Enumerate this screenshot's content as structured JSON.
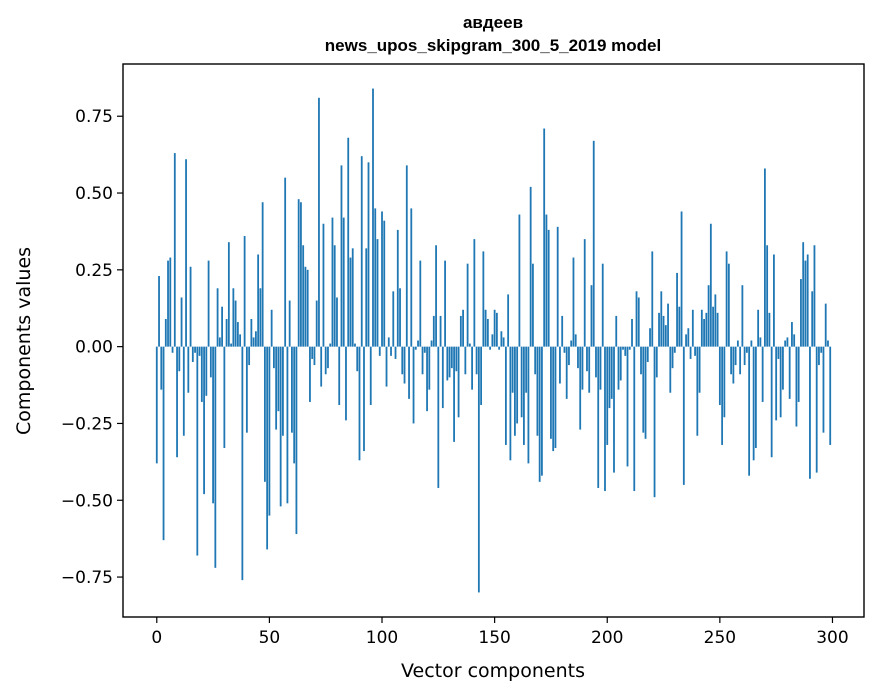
{
  "chart_data": {
    "type": "bar",
    "title": "авдеев",
    "subtitle": "news_upos_skipgram_300_5_2019 model",
    "xlabel": "Vector components",
    "ylabel": "Components values",
    "xlim": [
      -15,
      314
    ],
    "ylim": [
      -0.88,
      0.92
    ],
    "xticks": [
      0,
      50,
      100,
      150,
      200,
      250,
      300
    ],
    "yticks": [
      -0.75,
      -0.5,
      -0.25,
      0.0,
      0.25,
      0.5,
      0.75
    ],
    "ytick_labels": [
      "−0.75",
      "−0.50",
      "−0.25",
      "0.00",
      "0.25",
      "0.50",
      "0.75"
    ],
    "xtick_labels": [
      "0",
      "50",
      "100",
      "150",
      "200",
      "250",
      "300"
    ],
    "color": "#1f77b4",
    "grid": false,
    "values": [
      -0.38,
      0.23,
      -0.14,
      -0.63,
      0.09,
      0.28,
      0.29,
      -0.02,
      0.63,
      -0.36,
      -0.08,
      0.16,
      -0.29,
      0.61,
      -0.15,
      0.26,
      -0.05,
      -0.02,
      -0.68,
      -0.03,
      -0.18,
      -0.48,
      -0.16,
      0.28,
      -0.1,
      -0.51,
      -0.72,
      0.19,
      0.03,
      0.13,
      -0.33,
      0.09,
      0.34,
      0.01,
      0.19,
      0.15,
      0.08,
      0.04,
      -0.76,
      0.36,
      -0.28,
      -0.06,
      0.09,
      0.03,
      0.05,
      0.3,
      0.19,
      0.47,
      -0.44,
      -0.66,
      -0.55,
      0.12,
      -0.07,
      -0.27,
      -0.21,
      -0.52,
      -0.29,
      0.55,
      -0.51,
      0.15,
      -0.28,
      -0.38,
      -0.61,
      0.48,
      0.47,
      0.33,
      0.26,
      0.25,
      -0.18,
      -0.04,
      -0.06,
      0.15,
      0.81,
      -0.13,
      0.4,
      -0.09,
      -0.07,
      0.01,
      0.42,
      0.33,
      0.16,
      -0.19,
      0.59,
      0.42,
      -0.24,
      0.68,
      0.29,
      0.32,
      0.01,
      -0.08,
      -0.37,
      0.62,
      -0.34,
      0.32,
      0.6,
      -0.19,
      0.84,
      0.45,
      0.35,
      -0.03,
      0.44,
      0.41,
      -0.13,
      0.03,
      -0.03,
      0.18,
      -0.04,
      0.38,
      0.19,
      -0.09,
      -0.12,
      0.59,
      -0.17,
      0.45,
      -0.25,
      -0.01,
      0.02,
      0.28,
      -0.09,
      -0.02,
      -0.21,
      -0.14,
      0.02,
      0.1,
      0.33,
      -0.46,
      0.1,
      -0.2,
      0.28,
      -0.11,
      -0.1,
      -0.07,
      -0.31,
      -0.08,
      -0.23,
      0.1,
      0.12,
      -0.09,
      0.27,
      0.01,
      -0.14,
      0.35,
      -0.09,
      -0.8,
      -0.19,
      0.31,
      0.12,
      0.09,
      -0.01,
      0.04,
      0.12,
      0.11,
      -0.01,
      0.05,
      0.03,
      -0.32,
      0.17,
      -0.37,
      -0.15,
      -0.29,
      -0.25,
      0.43,
      -0.23,
      -0.32,
      -0.15,
      -0.38,
      0.52,
      0.27,
      -0.09,
      -0.29,
      -0.44,
      -0.42,
      0.71,
      0.43,
      0.38,
      -0.3,
      -0.34,
      -0.33,
      0.39,
      -0.12,
      0.1,
      -0.02,
      -0.17,
      -0.06,
      0.02,
      0.29,
      0.04,
      -0.07,
      -0.27,
      -0.14,
      0.35,
      -0.08,
      -0.15,
      0.2,
      0.67,
      -0.1,
      -0.46,
      -0.14,
      0.27,
      -0.47,
      -0.32,
      -0.2,
      -0.17,
      -0.41,
      0.1,
      -0.14,
      -0.11,
      -0.01,
      -0.03,
      -0.39,
      -0.01,
      0.09,
      -0.47,
      0.18,
      0.16,
      -0.09,
      -0.28,
      -0.3,
      -0.05,
      0.06,
      0.31,
      -0.49,
      -0.1,
      0.11,
      0.18,
      0.1,
      0.07,
      0.14,
      -0.15,
      -0.07,
      -0.02,
      0.24,
      0.13,
      0.44,
      -0.45,
      0.04,
      0.06,
      -0.04,
      0.12,
      -0.03,
      -0.29,
      -0.15,
      0.12,
      0.09,
      0.11,
      0.2,
      0.4,
      0.13,
      0.17,
      0.11,
      -0.19,
      -0.32,
      -0.23,
      0.31,
      0.27,
      -0.09,
      -0.12,
      -0.06,
      0.02,
      -0.09,
      0.2,
      -0.06,
      -0.02,
      -0.42,
      0.02,
      -0.37,
      -0.33,
      0.12,
      0.03,
      -0.18,
      0.58,
      0.33,
      0.11,
      -0.36,
      0.3,
      -0.24,
      -0.04,
      -0.23,
      -0.14,
      0.02,
      0.03,
      -0.17,
      0.08,
      0.04,
      -0.26,
      -0.18,
      0.22,
      0.34,
      0.28,
      0.3,
      -0.43,
      0.18,
      0.33,
      -0.41,
      -0.06,
      -0.02,
      -0.28,
      0.14,
      0.02,
      -0.32
    ]
  }
}
